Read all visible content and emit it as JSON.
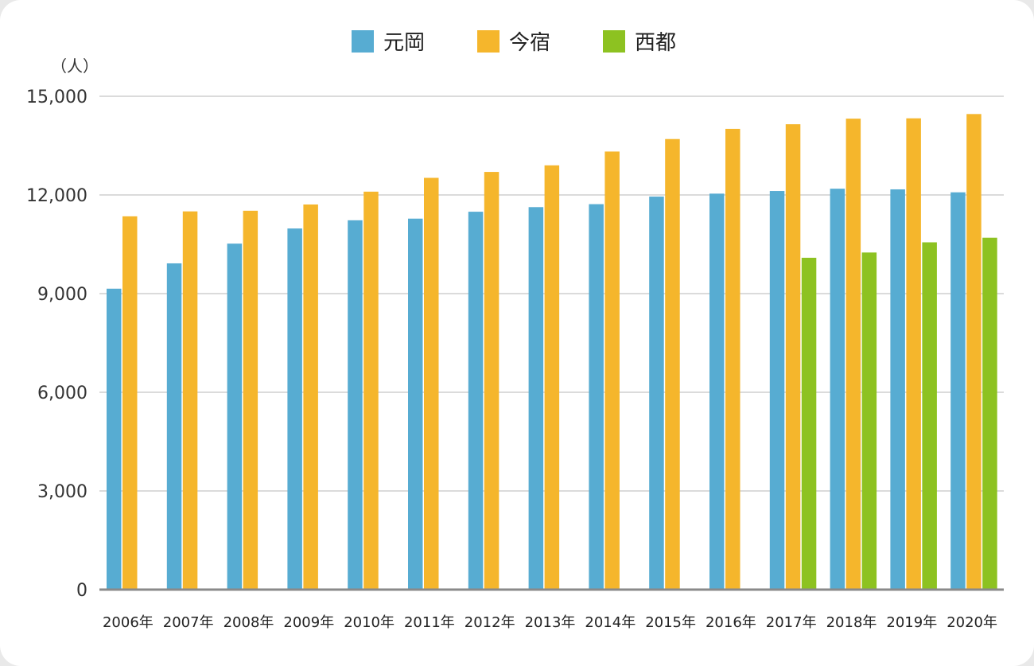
{
  "chart_data": {
    "type": "bar",
    "unit_label": "（人）",
    "categories": [
      "2006年",
      "2007年",
      "2008年",
      "2009年",
      "2010年",
      "2011年",
      "2012年",
      "2013年",
      "2014年",
      "2015年",
      "2016年",
      "2017年",
      "2018年",
      "2019年",
      "2020年"
    ],
    "series": [
      {
        "name": "元岡",
        "color": "#57acd2",
        "values": [
          9150,
          9920,
          10520,
          10980,
          11230,
          11280,
          11490,
          11630,
          11720,
          11950,
          12040,
          12120,
          12190,
          12170,
          12080
        ]
      },
      {
        "name": "今宿",
        "color": "#f5b62c",
        "values": [
          11350,
          11500,
          11520,
          11710,
          12100,
          12520,
          12700,
          12900,
          13320,
          13700,
          14010,
          14150,
          14320,
          14330,
          14460
        ]
      },
      {
        "name": "西都",
        "color": "#8dc221",
        "values": [
          null,
          null,
          null,
          null,
          null,
          null,
          null,
          null,
          null,
          null,
          null,
          10090,
          10250,
          10560,
          10700
        ]
      }
    ],
    "ylim": [
      0,
      15000
    ],
    "yticks": [
      0,
      3000,
      6000,
      9000,
      12000,
      15000
    ],
    "ytick_labels": [
      "0",
      "3,000",
      "6,000",
      "9,000",
      "12,000",
      "15,000"
    ],
    "grid": true,
    "legend_position": "top-center"
  }
}
